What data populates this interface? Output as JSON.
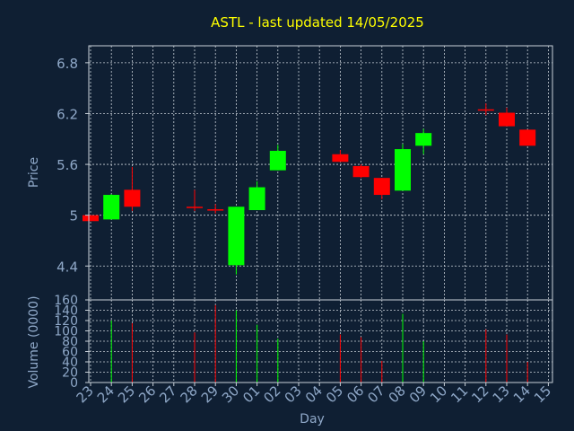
{
  "chart_data": {
    "type": "candlestick",
    "title": "ASTL - last updated 14/05/2025",
    "xlabel": "Day",
    "price_panel": {
      "ylabel": "Price",
      "ylim": [
        4.0,
        7.0
      ],
      "yticks": [
        "4.4",
        "5",
        "5.6",
        "6.2",
        "6.8"
      ],
      "grid": true
    },
    "volume_panel": {
      "ylabel": "Volume (0000)",
      "ylim": [
        0,
        160
      ],
      "yticks": [
        "0",
        "20",
        "40",
        "60",
        "80",
        "100",
        "120",
        "140",
        "160"
      ],
      "grid": true
    },
    "x_tick_labels": [
      "23",
      "24",
      "25",
      "26",
      "27",
      "28",
      "29",
      "30",
      "01",
      "02",
      "03",
      "04",
      "05",
      "06",
      "07",
      "08",
      "09",
      "10",
      "11",
      "12",
      "13",
      "14",
      "15"
    ],
    "colors": {
      "up": "#00ff00",
      "down": "#ff0000",
      "background": "#0f1f33",
      "title": "#ffff00",
      "axis_text": "#8fa8c8"
    },
    "candles": [
      {
        "day": "23",
        "open": 5.0,
        "high": 5.0,
        "low": 4.93,
        "close": 4.93,
        "volume": 0
      },
      {
        "day": "24",
        "open": 4.95,
        "high": 5.25,
        "low": 4.95,
        "close": 5.24,
        "volume": 120
      },
      {
        "day": "25",
        "open": 5.3,
        "high": 5.57,
        "low": 5.05,
        "close": 5.1,
        "volume": 115
      },
      {
        "day": "28",
        "open": 5.1,
        "high": 5.3,
        "low": 5.05,
        "close": 5.09,
        "volume": 97
      },
      {
        "day": "29",
        "open": 5.07,
        "high": 5.13,
        "low": 5.02,
        "close": 5.06,
        "volume": 150
      },
      {
        "day": "30",
        "open": 4.41,
        "high": 5.1,
        "low": 4.3,
        "close": 5.1,
        "volume": 140
      },
      {
        "day": "01",
        "open": 5.06,
        "high": 5.4,
        "low": 5.06,
        "close": 5.33,
        "volume": 112
      },
      {
        "day": "02",
        "open": 5.53,
        "high": 5.83,
        "low": 5.53,
        "close": 5.76,
        "volume": 85
      },
      {
        "day": "05",
        "open": 5.72,
        "high": 5.77,
        "low": 5.63,
        "close": 5.63,
        "volume": 93
      },
      {
        "day": "06",
        "open": 5.58,
        "high": 5.6,
        "low": 5.44,
        "close": 5.45,
        "volume": 88
      },
      {
        "day": "07",
        "open": 5.44,
        "high": 5.44,
        "low": 5.19,
        "close": 5.24,
        "volume": 42
      },
      {
        "day": "08",
        "open": 5.29,
        "high": 5.84,
        "low": 5.29,
        "close": 5.78,
        "volume": 133
      },
      {
        "day": "09",
        "open": 5.82,
        "high": 6.02,
        "low": 5.72,
        "close": 5.97,
        "volume": 80
      },
      {
        "day": "12",
        "open": 6.25,
        "high": 6.32,
        "low": 6.18,
        "close": 6.24,
        "volume": 103
      },
      {
        "day": "13",
        "open": 6.21,
        "high": 6.27,
        "low": 6.05,
        "close": 6.05,
        "volume": 93
      },
      {
        "day": "14",
        "open": 6.01,
        "high": 6.01,
        "low": 5.82,
        "close": 5.82,
        "volume": 40
      }
    ]
  }
}
